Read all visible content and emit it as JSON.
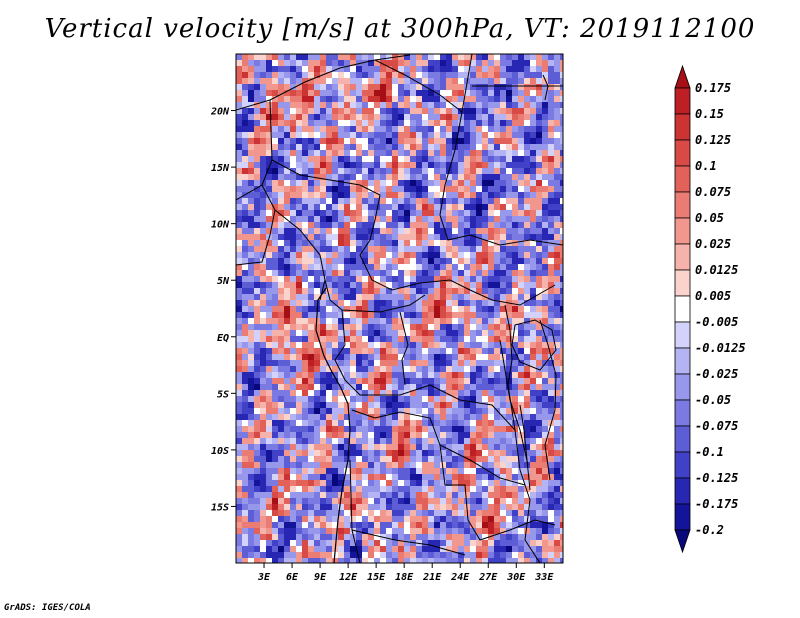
{
  "title": "Vertical velocity [m/s] at 300hPa, VT: 2019112100",
  "credit": "GrADS: IGES/COLA",
  "chart_data": {
    "type": "heatmap",
    "title": "Vertical velocity [m/s] at 300hPa, VT: 2019112100",
    "variable": "vertical velocity",
    "unit": "m/s",
    "level": "300hPa",
    "valid_time": "2019112100",
    "lon_range": [
      0,
      35
    ],
    "lat_range": [
      -20,
      25
    ],
    "x_ticks": [
      3,
      6,
      9,
      12,
      15,
      18,
      21,
      24,
      27,
      30,
      33
    ],
    "x_tick_labels": [
      "3E",
      "6E",
      "9E",
      "12E",
      "15E",
      "18E",
      "21E",
      "24E",
      "27E",
      "30E",
      "33E"
    ],
    "y_ticks": [
      20,
      15,
      10,
      5,
      0,
      -5,
      -10,
      -15
    ],
    "y_tick_labels": [
      "20N",
      "15N",
      "10N",
      "5N",
      "EQ",
      "5S",
      "10S",
      "15S"
    ],
    "colorbar": {
      "levels": [
        "0.175",
        "0.15",
        "0.125",
        "0.1",
        "0.075",
        "0.05",
        "0.025",
        "0.0125",
        "0.005",
        "-0.005",
        "-0.0125",
        "-0.025",
        "-0.05",
        "-0.075",
        "-0.1",
        "-0.125",
        "-0.175",
        "-0.2"
      ],
      "colors": [
        "#a50f15",
        "#bd1f24",
        "#cc3333",
        "#d84a45",
        "#e2625a",
        "#ea7c73",
        "#f1978e",
        "#f6b3ab",
        "#fad3cd",
        "#ffffff",
        "#d2d2fa",
        "#b4b4f4",
        "#9797ec",
        "#7a7ae2",
        "#5d5dd6",
        "#4141c8",
        "#2727b4",
        "#14149a",
        "#08087c"
      ]
    }
  }
}
